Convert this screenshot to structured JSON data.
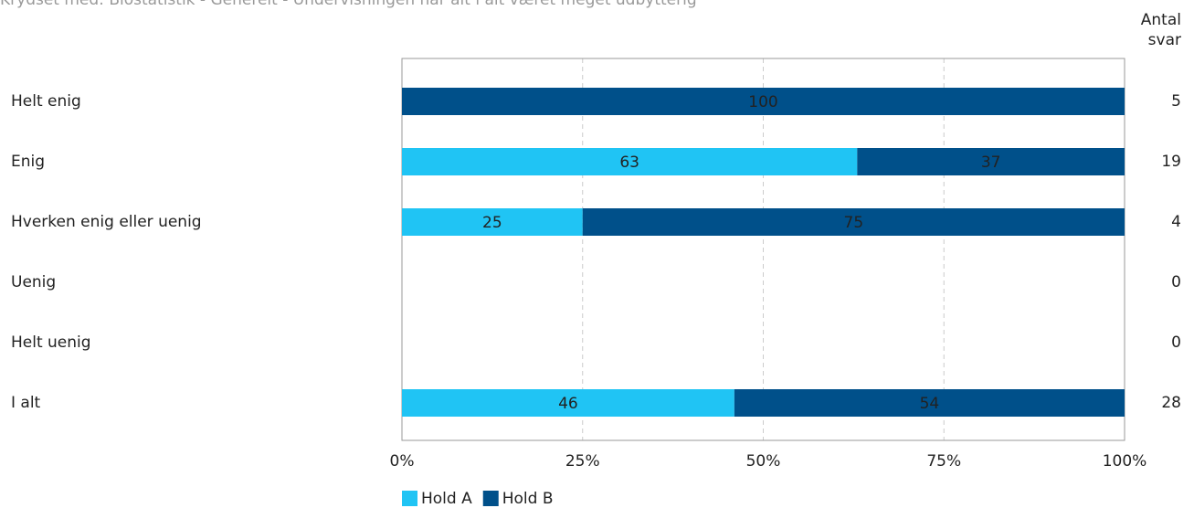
{
  "chart_data": {
    "type": "stacked_barh",
    "title": "Krydset med: Biostatistik - Generelt - Undervisningen har alt i alt været meget udbytterig",
    "categories": [
      "Helt enig",
      "Enig",
      "Hverken enig eller uenig",
      "Uenig",
      "Helt uenig",
      "I alt"
    ],
    "series": [
      {
        "name": "Hold A",
        "color": "#20c4f4",
        "values": [
          0,
          63,
          25,
          null,
          null,
          46
        ]
      },
      {
        "name": "Hold B",
        "color": "#00508a",
        "values": [
          100,
          37,
          75,
          null,
          null,
          54
        ]
      }
    ],
    "count_header": [
      "Antal",
      "svar"
    ],
    "counts": [
      5,
      19,
      4,
      0,
      0,
      28
    ],
    "xlim": [
      0,
      100
    ],
    "xticks": [
      {
        "value": 0,
        "label": "0%"
      },
      {
        "value": 25,
        "label": "25%"
      },
      {
        "value": 50,
        "label": "50%"
      },
      {
        "value": 75,
        "label": "75%"
      },
      {
        "value": 100,
        "label": "100%"
      }
    ],
    "grid": true
  }
}
